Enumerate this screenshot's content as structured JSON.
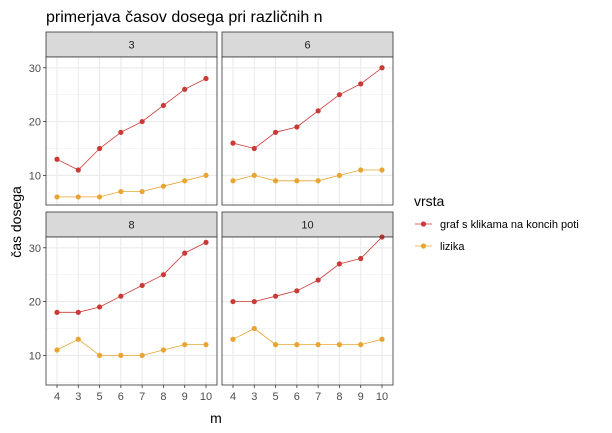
{
  "chart_data": {
    "type": "line",
    "title": "primerjava časov dosega pri različnih n",
    "xlabel": "m",
    "ylabel": "čas dosega",
    "x_tick_labels": [
      "4",
      "3",
      "5",
      "6",
      "7",
      "8",
      "9",
      "10"
    ],
    "y_ticks": [
      10,
      20,
      30
    ],
    "ylim": [
      4.5,
      32
    ],
    "grid": true,
    "legend": {
      "title": "vrsta",
      "placement": "right",
      "entries": [
        "graf s klikama na koncih poti",
        "lizika"
      ]
    },
    "colors": {
      "graf s klikama na koncih poti": "#CB3A36",
      "lizika": "#E8A532",
      "strip_fill": "#D9D9D9",
      "grid": "#EBEBEB",
      "panel_border": "#333333"
    },
    "panels": [
      {
        "facet": "3",
        "series": [
          {
            "name": "graf s klikama na koncih poti",
            "values": [
              13,
              11,
              15,
              18,
              20,
              23,
              26,
              28
            ]
          },
          {
            "name": "lizika",
            "values": [
              6,
              6,
              6,
              7,
              7,
              8,
              9,
              10
            ]
          }
        ]
      },
      {
        "facet": "6",
        "series": [
          {
            "name": "graf s klikama na koncih poti",
            "values": [
              16,
              15,
              18,
              19,
              22,
              25,
              27,
              30
            ]
          },
          {
            "name": "lizika",
            "values": [
              9,
              10,
              9,
              9,
              9,
              10,
              11,
              11
            ]
          }
        ]
      },
      {
        "facet": "8",
        "series": [
          {
            "name": "graf s klikama na koncih poti",
            "values": [
              18,
              18,
              19,
              21,
              23,
              25,
              29,
              31
            ]
          },
          {
            "name": "lizika",
            "values": [
              11,
              13,
              10,
              10,
              10,
              11,
              12,
              12
            ]
          }
        ]
      },
      {
        "facet": "10",
        "series": [
          {
            "name": "graf s klikama na koncih poti",
            "values": [
              20,
              20,
              21,
              22,
              24,
              27,
              28,
              32
            ]
          },
          {
            "name": "lizika",
            "values": [
              13,
              15,
              12,
              12,
              12,
              12,
              12,
              13
            ]
          }
        ]
      }
    ]
  }
}
